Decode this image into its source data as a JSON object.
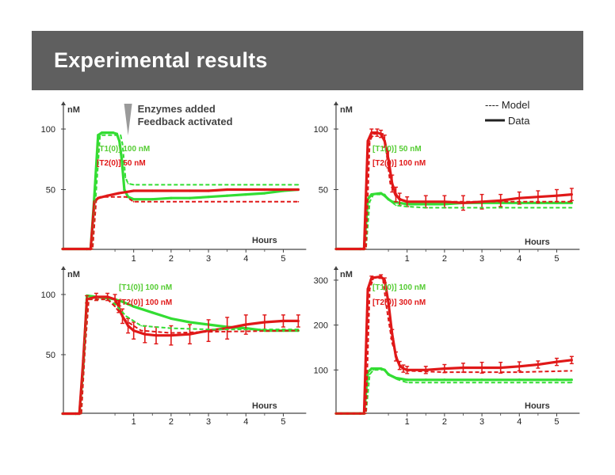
{
  "slide": {
    "title": "Experimental results"
  },
  "colors": {
    "t1": "#33dd33",
    "t2": "#e01818",
    "axis": "#444444",
    "banner": "#5f5f5f"
  },
  "legend": {
    "model": "---- Model",
    "data": "Data"
  },
  "chart_data": [
    {
      "type": "line",
      "panel": "top-left",
      "ylabel": "nM",
      "xlabel": "Hours",
      "xlim": [
        -0.9,
        5.4
      ],
      "ylim": [
        0,
        112
      ],
      "yticks": [
        50,
        100
      ],
      "xticks": [
        1,
        2,
        3,
        4,
        5
      ],
      "annotation": [
        "Enzymes added",
        "Feedback activated"
      ],
      "annotation_x": 0.85,
      "labels": [
        "[T1(0)] 100 nM",
        "[T2(0)] 50 nM"
      ],
      "series": [
        {
          "name": "T1 data",
          "color": "t1",
          "style": "data",
          "x": [
            -0.9,
            -0.25,
            -0.15,
            -0.05,
            0.05,
            0.15,
            0.25,
            0.35,
            0.45,
            0.55,
            0.62,
            0.68,
            0.75,
            0.85,
            1.0,
            1.5,
            2.0,
            2.5,
            3.0,
            3.5,
            4.0,
            4.5,
            5.0,
            5.4
          ],
          "y": [
            1,
            1,
            1,
            45,
            95,
            97,
            97,
            97,
            97,
            96,
            90,
            75,
            50,
            44,
            42,
            42,
            43,
            43,
            44,
            45,
            46,
            47,
            49,
            50
          ]
        },
        {
          "name": "T2 data",
          "color": "t2",
          "style": "data",
          "x": [
            -0.9,
            -0.25,
            -0.15,
            -0.05,
            0.05,
            0.3,
            0.6,
            0.8,
            1.0,
            1.5,
            2.0,
            2.5,
            3.0,
            3.5,
            4.0,
            4.5,
            5.0,
            5.4
          ],
          "y": [
            1,
            1,
            1,
            40,
            43,
            45,
            47,
            48,
            49,
            49,
            49,
            49,
            49,
            50,
            50,
            50,
            50,
            50
          ]
        },
        {
          "name": "T1 model",
          "color": "t1",
          "style": "model",
          "x": [
            -0.9,
            -0.2,
            -0.1,
            0.0,
            0.1,
            0.65,
            0.7,
            0.78,
            0.85,
            1.0,
            5.4
          ],
          "y": [
            1,
            1,
            1,
            50,
            95,
            95,
            88,
            60,
            55,
            54,
            54
          ]
        },
        {
          "name": "T2 model",
          "color": "t2",
          "style": "model",
          "x": [
            -0.9,
            -0.2,
            -0.1,
            0.0,
            0.1,
            0.8,
            1.0,
            5.4
          ],
          "y": [
            1,
            1,
            1,
            42,
            44,
            44,
            40,
            40
          ]
        }
      ]
    },
    {
      "type": "line",
      "panel": "top-right",
      "ylabel": "nM",
      "xlabel": "Hours",
      "xlim": [
        -0.9,
        5.4
      ],
      "ylim": [
        0,
        112
      ],
      "yticks": [
        50,
        100
      ],
      "xticks": [
        1,
        2,
        3,
        4,
        5
      ],
      "labels": [
        "[T1(0)] 50 nM",
        "[T2(0)] 100 nM"
      ],
      "series": [
        {
          "name": "T1 data",
          "color": "t1",
          "style": "data",
          "x": [
            -0.9,
            -0.25,
            -0.15,
            -0.05,
            0.05,
            0.3,
            0.4,
            0.5,
            0.6,
            0.8,
            1.0,
            1.5,
            2.0,
            2.5,
            3.0,
            3.5,
            4.0,
            4.5,
            5.0,
            5.4
          ],
          "y": [
            1,
            1,
            1,
            42,
            46,
            47,
            45,
            42,
            40,
            39,
            38,
            38,
            38,
            39,
            39,
            39,
            39,
            39,
            39,
            39
          ]
        },
        {
          "name": "T2 data",
          "color": "t2",
          "style": "data",
          "x": [
            -0.9,
            -0.25,
            -0.15,
            -0.05,
            0.05,
            0.2,
            0.3,
            0.4,
            0.5,
            0.6,
            0.7,
            0.8,
            1.0,
            1.5,
            2.0,
            2.5,
            3.0,
            3.5,
            4.0,
            4.5,
            5.0,
            5.4
          ],
          "y": [
            1,
            1,
            1,
            90,
            97,
            97,
            96,
            90,
            75,
            55,
            46,
            42,
            40,
            40,
            40,
            39,
            40,
            41,
            43,
            44,
            45,
            46
          ],
          "err": [
            0,
            0,
            0,
            0,
            3,
            3,
            3,
            5,
            7,
            7,
            6,
            5,
            4,
            5,
            5,
            6,
            6,
            5,
            5,
            5,
            5,
            5
          ]
        },
        {
          "name": "T1 model",
          "color": "t1",
          "style": "model",
          "x": [
            -0.9,
            -0.2,
            -0.1,
            0.0,
            0.1,
            0.4,
            0.5,
            0.7,
            1.0,
            1.5,
            2.0,
            5.4
          ],
          "y": [
            1,
            1,
            1,
            40,
            46,
            46,
            42,
            37,
            36,
            35,
            35,
            35
          ]
        },
        {
          "name": "T2 model",
          "color": "t2",
          "style": "model",
          "x": [
            -0.9,
            -0.2,
            -0.1,
            0.0,
            0.1,
            0.35,
            0.45,
            0.55,
            0.7,
            1.0,
            5.4
          ],
          "y": [
            1,
            1,
            1,
            90,
            96,
            96,
            80,
            55,
            44,
            40,
            40
          ]
        }
      ]
    },
    {
      "type": "line",
      "panel": "bottom-left",
      "ylabel": "nM",
      "xlabel": "Hours",
      "xlim": [
        -0.9,
        5.4
      ],
      "ylim": [
        0,
        135
      ],
      "yticks": [
        50,
        100
      ],
      "xticks": [
        1,
        2,
        3,
        4,
        5
      ],
      "labels": [
        "[T1(0)] 100 nM",
        "[T2(0)] 100 nM"
      ],
      "series": [
        {
          "name": "T1 data",
          "color": "t1",
          "style": "data",
          "x": [
            -0.9,
            -0.55,
            -0.45,
            -0.35,
            -0.25,
            0.0,
            0.3,
            0.5,
            0.7,
            1.0,
            1.5,
            2.0,
            2.5,
            3.0,
            3.5,
            4.0,
            4.5,
            5.0,
            5.4
          ],
          "y": [
            1,
            1,
            1,
            40,
            99,
            98,
            97,
            96,
            94,
            90,
            85,
            80,
            77,
            75,
            73,
            72,
            70,
            70,
            70
          ]
        },
        {
          "name": "T2 data",
          "color": "t2",
          "style": "data",
          "x": [
            -0.9,
            -0.55,
            -0.45,
            -0.35,
            -0.25,
            0.0,
            0.3,
            0.5,
            0.6,
            0.7,
            0.85,
            1.0,
            1.3,
            1.6,
            2.0,
            2.5,
            3.0,
            3.5,
            4.0,
            4.5,
            5.0,
            5.4
          ],
          "y": [
            1,
            1,
            1,
            45,
            96,
            98,
            98,
            96,
            90,
            82,
            74,
            70,
            67,
            66,
            66,
            67,
            70,
            72,
            75,
            77,
            78,
            78
          ],
          "err": [
            0,
            0,
            0,
            0,
            3,
            3,
            3,
            4,
            5,
            6,
            6,
            7,
            7,
            7,
            8,
            8,
            9,
            9,
            8,
            6,
            5,
            5
          ]
        },
        {
          "name": "T1 model",
          "color": "t1",
          "style": "model",
          "x": [
            -0.9,
            -0.5,
            -0.4,
            -0.3,
            -0.2,
            0.3,
            0.5,
            0.8,
            1.2,
            2.0,
            3.0,
            5.4
          ],
          "y": [
            1,
            1,
            1,
            60,
            96,
            96,
            92,
            82,
            74,
            72,
            71,
            71
          ]
        },
        {
          "name": "T2 model",
          "color": "t2",
          "style": "model",
          "x": [
            -0.9,
            -0.5,
            -0.4,
            -0.3,
            -0.2,
            0.3,
            0.5,
            0.8,
            1.2,
            2.0,
            3.0,
            5.4
          ],
          "y": [
            1,
            1,
            1,
            55,
            96,
            96,
            90,
            78,
            70,
            68,
            69,
            70
          ]
        }
      ]
    },
    {
      "type": "line",
      "panel": "bottom-right",
      "ylabel": "nM",
      "xlabel": "Hours",
      "xlim": [
        -0.9,
        5.4
      ],
      "ylim": [
        0,
        330
      ],
      "yticks": [
        100,
        200,
        300
      ],
      "xticks": [
        1,
        2,
        3,
        4,
        5
      ],
      "labels": [
        "[T1(0)] 100 nM",
        "[T2(0)] 300 nM"
      ],
      "series": [
        {
          "name": "T1 data",
          "color": "t1",
          "style": "data",
          "x": [
            -0.9,
            -0.25,
            -0.15,
            -0.05,
            0.05,
            0.3,
            0.4,
            0.5,
            0.7,
            1.0,
            1.5,
            2.0,
            3.0,
            4.0,
            5.0,
            5.4
          ],
          "y": [
            3,
            3,
            3,
            95,
            103,
            103,
            100,
            90,
            82,
            78,
            78,
            78,
            78,
            78,
            78,
            78
          ]
        },
        {
          "name": "T2 data",
          "color": "t2",
          "style": "data",
          "x": [
            -0.9,
            -0.25,
            -0.15,
            -0.05,
            0.05,
            0.3,
            0.4,
            0.5,
            0.6,
            0.7,
            0.8,
            0.9,
            1.0,
            1.5,
            2.0,
            2.5,
            3.0,
            3.5,
            4.0,
            4.5,
            5.0,
            5.4
          ],
          "y": [
            3,
            3,
            3,
            280,
            305,
            308,
            300,
            250,
            180,
            130,
            110,
            103,
            100,
            100,
            103,
            105,
            105,
            105,
            108,
            112,
            118,
            122
          ],
          "err": [
            0,
            0,
            0,
            0,
            4,
            4,
            5,
            8,
            10,
            10,
            9,
            8,
            8,
            8,
            9,
            10,
            12,
            12,
            10,
            8,
            8,
            8
          ]
        },
        {
          "name": "T1 model",
          "color": "t1",
          "style": "model",
          "x": [
            -0.9,
            -0.2,
            -0.1,
            0.0,
            0.1,
            0.4,
            0.5,
            0.7,
            1.0,
            2.0,
            5.4
          ],
          "y": [
            3,
            3,
            3,
            90,
            100,
            100,
            92,
            80,
            72,
            72,
            72
          ]
        },
        {
          "name": "T2 model",
          "color": "t2",
          "style": "model",
          "x": [
            -0.9,
            -0.2,
            -0.1,
            0.0,
            0.1,
            0.35,
            0.45,
            0.6,
            0.8,
            1.0,
            2.0,
            3.0,
            4.0,
            5.4
          ],
          "y": [
            3,
            3,
            3,
            280,
            305,
            305,
            240,
            160,
            110,
            98,
            95,
            95,
            95,
            98
          ]
        }
      ]
    }
  ]
}
